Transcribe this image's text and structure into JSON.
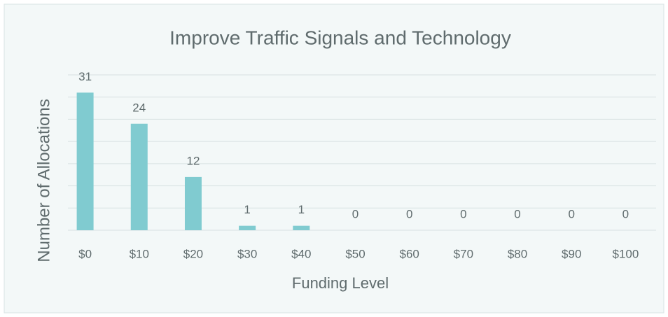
{
  "chart_data": {
    "type": "bar",
    "title": "Improve Traffic Signals and Technology",
    "x_label": "Funding Level",
    "y_label": "Number of Allocations",
    "categories": [
      "$0",
      "$10",
      "$20",
      "$30",
      "$40",
      "$50",
      "$60",
      "$70",
      "$80",
      "$90",
      "$100"
    ],
    "values": [
      31,
      24,
      12,
      1,
      1,
      0,
      0,
      0,
      0,
      0,
      0
    ],
    "color": "#80cbd0",
    "ylim": [
      0,
      35
    ],
    "yticks": [
      0,
      5,
      10,
      15,
      20,
      25,
      30,
      35
    ],
    "grid": true
  }
}
